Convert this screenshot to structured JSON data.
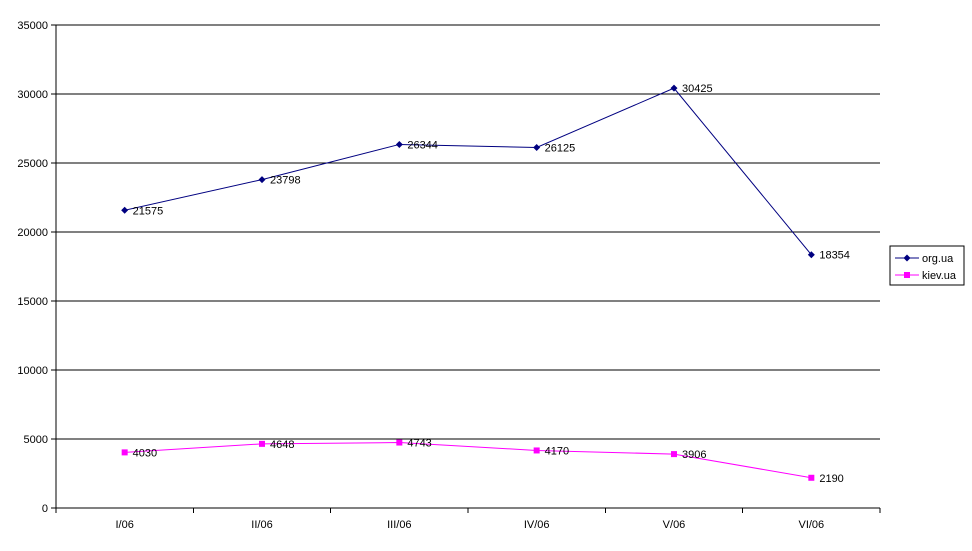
{
  "chart_data": {
    "type": "line",
    "title": "",
    "xlabel": "",
    "ylabel": "",
    "categories": [
      "I/06",
      "II/06",
      "III/06",
      "IV/06",
      "V/06",
      "VI/06"
    ],
    "ylim": [
      0,
      35000
    ],
    "yticks": [
      0,
      5000,
      10000,
      15000,
      20000,
      25000,
      30000,
      35000
    ],
    "grid": true,
    "legend_position": "right",
    "series": [
      {
        "name": "org.ua",
        "values": [
          21575,
          23798,
          26344,
          26125,
          30425,
          18354
        ],
        "color": "#000080",
        "marker": "diamond"
      },
      {
        "name": "kiev.ua",
        "values": [
          4030,
          4648,
          4743,
          4170,
          3906,
          2190
        ],
        "color": "#FF00FF",
        "marker": "square"
      }
    ]
  }
}
